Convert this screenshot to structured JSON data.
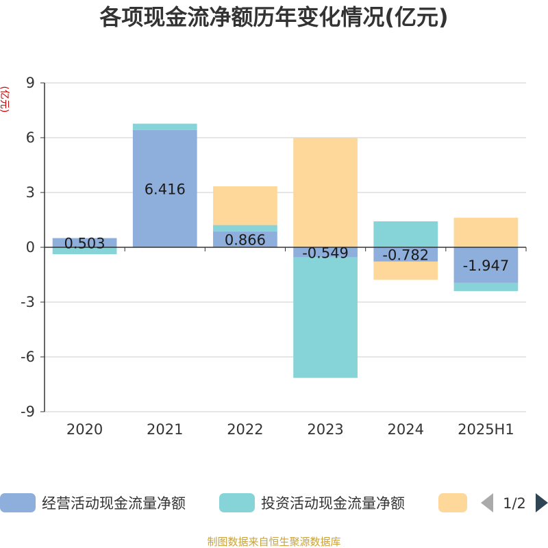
{
  "chart_data": {
    "type": "bar",
    "stacked": true,
    "title": "各项现金流净额历年变化情况(亿元)",
    "ylabel": "(亿元)",
    "xlabel": "",
    "categories": [
      "2020",
      "2021",
      "2022",
      "2023",
      "2024",
      "2025H1"
    ],
    "ylim": [
      -9,
      9
    ],
    "yticks": [
      "9",
      "6",
      "3",
      "0",
      "-3",
      "-6",
      "-9"
    ],
    "ytick_values": [
      9,
      6,
      3,
      0,
      -3,
      -6,
      -9
    ],
    "grid": true,
    "legend_position": "bottom",
    "series": [
      {
        "name": "经营活动现金流量净额",
        "color": "#8eaedb",
        "values": [
          0.503,
          6.416,
          0.866,
          -0.549,
          -0.782,
          -1.947
        ],
        "labels": [
          "0.503",
          "6.416",
          "0.866",
          "-0.549",
          "-0.782",
          "-1.947"
        ]
      },
      {
        "name": "投资活动现金流量净额",
        "color": "#86d4d8",
        "values": [
          -0.38,
          0.35,
          0.35,
          -6.6,
          1.42,
          -0.45
        ]
      },
      {
        "name": "",
        "color": "#fdd89a",
        "values": [
          0.0,
          0.0,
          2.12,
          6.0,
          -1.0,
          1.62
        ]
      }
    ],
    "legend_page": "1/2"
  },
  "source": "制图数据来自恒生聚源数据库"
}
